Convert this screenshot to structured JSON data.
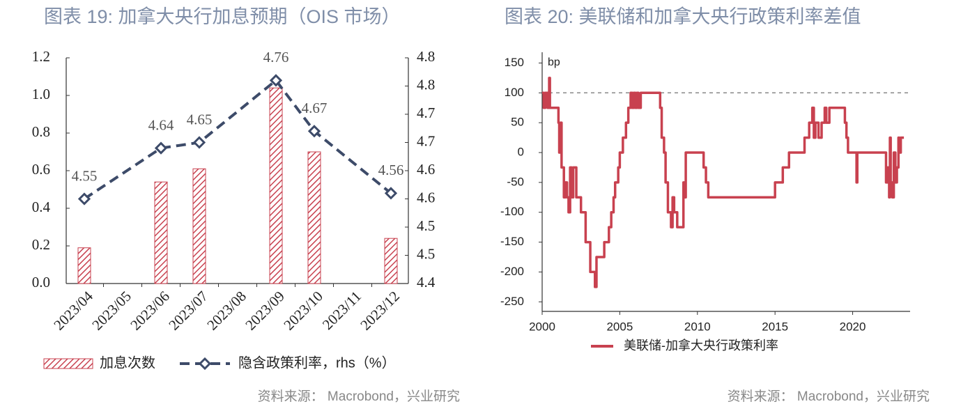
{
  "chart_data": [
    {
      "type": "combo",
      "title": "图表 19: 加拿大央行加息预期（OIS 市场）",
      "source": "资料来源： Macrobond，兴业研究",
      "categories": [
        "2023/04",
        "2023/05",
        "2023/06",
        "2023/07",
        "2023/08",
        "2023/09",
        "2023/10",
        "2023/11",
        "2023/12"
      ],
      "series": [
        {
          "name": "加息次数",
          "type": "bar",
          "color": "#c8414f",
          "values": [
            0.19,
            null,
            0.54,
            0.61,
            null,
            1.04,
            0.7,
            null,
            0.24
          ]
        },
        {
          "name": "隐含政策利率，rhs（%）",
          "type": "line",
          "axis": "y2",
          "color": "#3d4b69",
          "dashed": true,
          "marker": "diamond",
          "connect_gaps": true,
          "data_labels": true,
          "values": [
            4.55,
            null,
            4.64,
            4.65,
            null,
            4.76,
            4.67,
            null,
            4.56
          ]
        }
      ],
      "ylim": [
        0,
        1.2
      ],
      "yticks": [
        {
          "value": 0,
          "label": "0.0"
        },
        0.2,
        0.4,
        0.6,
        0.8,
        {
          "value": 1,
          "label": "1.0"
        },
        1.2
      ],
      "y2lim": [
        4.4,
        4.8
      ],
      "y2ticks": [
        4.4,
        {
          "value": 4.45,
          "label": "4.5"
        },
        4.5,
        {
          "value": 4.55,
          "label": "4.6"
        },
        4.6,
        {
          "value": 4.65,
          "label": "4.7"
        },
        4.7,
        {
          "value": 4.75,
          "label": "4.8"
        },
        4.8
      ],
      "legend": "bottom",
      "grid": false
    },
    {
      "type": "line",
      "title": "图表 20: 美联储和加拿大央行政策利率差值",
      "source": "资料来源： Macrobond，兴业研究",
      "annotation": "bp",
      "reference_line": 100,
      "x": [
        2000,
        2000.1,
        2000.1,
        2000.2,
        2000.2,
        2000.35,
        2000.35,
        2000.45,
        2000.45,
        2000.5,
        2000.5,
        2001.05,
        2001.05,
        2001.1,
        2001.1,
        2001.2,
        2001.2,
        2001.25,
        2001.25,
        2001.4,
        2001.4,
        2001.5,
        2001.5,
        2001.6,
        2001.6,
        2001.7,
        2001.7,
        2001.8,
        2001.8,
        2001.9,
        2001.9,
        2002,
        2002,
        2002.2,
        2002.2,
        2002.5,
        2002.5,
        2002.8,
        2002.8,
        2003.1,
        2003.1,
        2003.4,
        2003.4,
        2003.5,
        2003.5,
        2004,
        2004,
        2004.3,
        2004.3,
        2004.45,
        2004.45,
        2004.6,
        2004.6,
        2004.7,
        2004.7,
        2004.9,
        2004.9,
        2005,
        2005,
        2005.2,
        2005.2,
        2005.4,
        2005.4,
        2005.55,
        2005.55,
        2005.7,
        2005.7,
        2005.8,
        2005.8,
        2005.9,
        2005.9,
        2006,
        2006,
        2006.1,
        2006.1,
        2006.2,
        2006.2,
        2006.35,
        2006.35,
        2007.6,
        2007.6,
        2007.7,
        2007.7,
        2007.85,
        2007.85,
        2007.95,
        2007.95,
        2008.1,
        2008.1,
        2008.3,
        2008.3,
        2008.4,
        2008.4,
        2008.5,
        2008.5,
        2008.7,
        2008.7,
        2009.1,
        2009.1,
        2009.15,
        2009.15,
        2009.25,
        2009.25,
        2010.4,
        2010.4,
        2010.55,
        2010.55,
        2010.7,
        2010.7,
        2015,
        2015,
        2015.5,
        2015.5,
        2015.9,
        2015.9,
        2016.9,
        2016.9,
        2017.2,
        2017.2,
        2017.4,
        2017.4,
        2017.5,
        2017.5,
        2017.6,
        2017.6,
        2017.8,
        2017.8,
        2018,
        2018,
        2018.2,
        2018.2,
        2018.3,
        2018.3,
        2018.5,
        2018.5,
        2019.5,
        2019.5,
        2019.6,
        2019.6,
        2019.7,
        2019.7,
        2020.25,
        2020.25,
        2020.3,
        2020.3,
        2022.15,
        2022.15,
        2022.25,
        2022.25,
        2022.35,
        2022.35,
        2022.4,
        2022.4,
        2022.45,
        2022.45,
        2022.55,
        2022.55,
        2022.65,
        2022.65,
        2022.75,
        2022.75,
        2022.85,
        2022.85,
        2022.95,
        2022.95,
        2023,
        2023,
        2023.1,
        2023.1,
        2023.3
      ],
      "series": [
        {
          "name": "美联储-加拿大央行政策利率",
          "color": "#c8414f",
          "values": [
            100,
            100,
            75,
            75,
            100,
            100,
            75,
            75,
            125,
            125,
            75,
            75,
            50,
            50,
            0,
            0,
            50,
            50,
            -25,
            -25,
            -75,
            -75,
            -50,
            -50,
            -75,
            -75,
            -100,
            -100,
            -25,
            -25,
            -75,
            -75,
            -25,
            -25,
            -75,
            -75,
            -100,
            -100,
            -150,
            -150,
            -200,
            -200,
            -225,
            -225,
            -175,
            -175,
            -150,
            -150,
            -125,
            -125,
            -100,
            -100,
            -75,
            -75,
            -50,
            -50,
            -25,
            -25,
            0,
            0,
            25,
            25,
            50,
            50,
            75,
            75,
            100,
            100,
            75,
            75,
            100,
            100,
            75,
            75,
            100,
            100,
            75,
            75,
            100,
            100,
            75,
            75,
            25,
            25,
            0,
            0,
            -50,
            -50,
            -100,
            -100,
            -125,
            -125,
            -75,
            -75,
            -100,
            -100,
            -125,
            -125,
            -50,
            -50,
            -75,
            -75,
            0,
            0,
            -25,
            -25,
            -50,
            -50,
            -75,
            -75,
            -50,
            -50,
            -25,
            -25,
            0,
            0,
            25,
            25,
            50,
            50,
            75,
            75,
            25,
            25,
            50,
            50,
            25,
            25,
            50,
            50,
            75,
            75,
            50,
            50,
            75,
            75,
            50,
            50,
            25,
            25,
            0,
            0,
            -50,
            -50,
            0,
            0,
            -50,
            -50,
            -25,
            -25,
            -75,
            -75,
            25,
            25,
            -50,
            -50,
            -75,
            -75,
            0,
            0,
            -50,
            -50,
            -25,
            -25,
            25,
            25,
            0,
            0,
            25,
            25
          ]
        }
      ],
      "xlim": [
        2000,
        2023.7
      ],
      "xticks": [
        2000,
        2005,
        2010,
        2015,
        2020
      ],
      "ylim": [
        -266,
        168
      ],
      "yticks": [
        -250,
        -200,
        -150,
        -100,
        -50,
        0,
        50,
        100,
        150
      ],
      "legend": "bottom",
      "grid": false
    }
  ]
}
